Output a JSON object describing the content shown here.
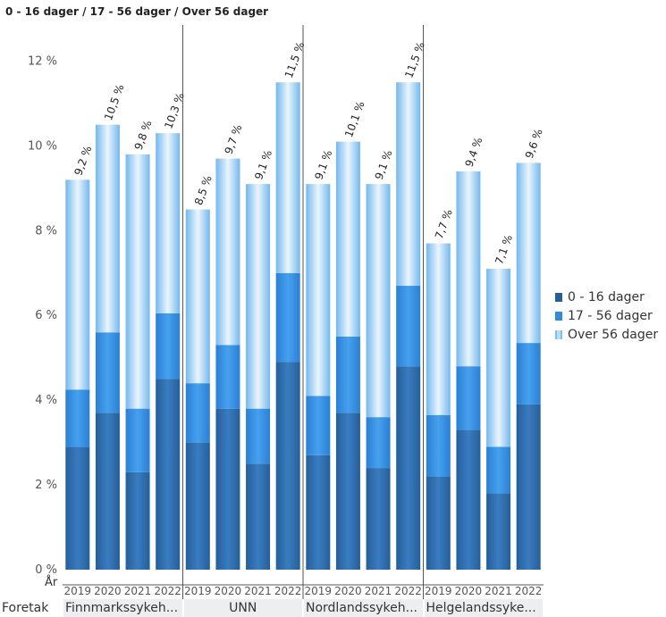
{
  "chart_data": {
    "type": "bar",
    "stacked": true,
    "title": "0 - 16 dager / 17 - 56 dager / Over 56 dager",
    "y_axis": {
      "ylim": [
        0,
        12.6
      ],
      "ticks": [
        0,
        2,
        4,
        6,
        8,
        10,
        12
      ],
      "tick_labels": [
        "0 %",
        "2 %",
        "4 %",
        "6 %",
        "8 %",
        "10 %",
        "12 %"
      ]
    },
    "x_axis_title_inner": "År",
    "x_axis_title_outer": "Foretak",
    "groups": [
      {
        "name": "Finnmarkssykeh...",
        "years": [
          "2019",
          "2020",
          "2021",
          "2022"
        ]
      },
      {
        "name": "UNN",
        "years": [
          "2019",
          "2020",
          "2021",
          "2022"
        ]
      },
      {
        "name": "Nordlandssykeh...",
        "years": [
          "2019",
          "2020",
          "2021",
          "2022"
        ]
      },
      {
        "name": "Helgelandssyke...",
        "years": [
          "2019",
          "2020",
          "2021",
          "2022"
        ]
      }
    ],
    "series": [
      {
        "name": "0 - 16 dager",
        "color": "#2a6aa8",
        "values": [
          2.9,
          3.7,
          2.3,
          4.5,
          3.0,
          3.8,
          2.5,
          4.9,
          2.7,
          3.7,
          2.4,
          4.8,
          2.2,
          3.3,
          1.8,
          3.9
        ]
      },
      {
        "name": "17 - 56 dager",
        "color": "#2f8be0",
        "values": [
          1.35,
          1.9,
          1.5,
          1.55,
          1.4,
          1.5,
          1.3,
          2.1,
          1.4,
          1.8,
          1.2,
          1.9,
          1.45,
          1.5,
          1.1,
          1.45
        ]
      },
      {
        "name": "Over 56 dager",
        "color": "#7cc0f2",
        "values": [
          4.95,
          4.9,
          6.0,
          4.25,
          4.1,
          4.4,
          5.3,
          4.5,
          5.0,
          4.6,
          5.5,
          4.8,
          4.05,
          4.6,
          4.2,
          4.25
        ]
      }
    ],
    "totals": [
      9.2,
      10.5,
      9.8,
      10.3,
      8.5,
      9.7,
      9.1,
      11.5,
      9.1,
      10.1,
      9.1,
      11.5,
      7.7,
      9.4,
      7.1,
      9.6
    ],
    "data_labels": [
      "9,2 %",
      "10,5 %",
      "9,8 %",
      "10,3 %",
      "8,5 %",
      "9,7 %",
      "9,1 %",
      "11,5 %",
      "9,1 %",
      "10,1 %",
      "9,1 %",
      "11,5 %",
      "7,7 %",
      "9,4 %",
      "7,1 %",
      "9,6 %"
    ],
    "legend": {
      "position": "right"
    },
    "grid": false
  }
}
